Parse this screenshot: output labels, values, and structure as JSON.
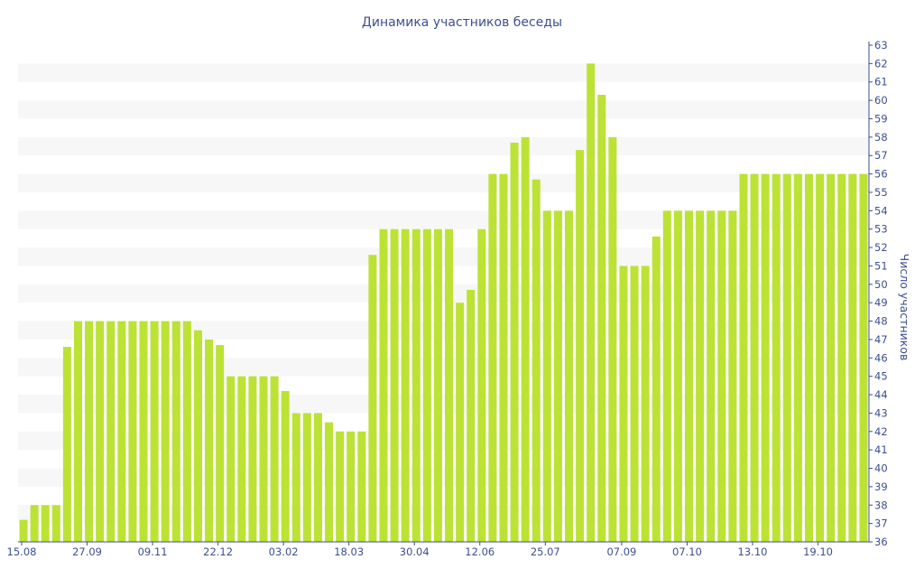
{
  "chart_data": {
    "type": "bar",
    "title": "Динамика участников беседы",
    "ylabel": "Число участников",
    "xlabel": "",
    "ylim": [
      36,
      63
    ],
    "y_axis_side": "right",
    "grid": "alternating horizontal bands",
    "bar_color": "#bce235",
    "band_color": "#f7f7f7",
    "text_color": "#3d4f8f",
    "x_tick_labels": [
      "15.08",
      "27.09",
      "09.11",
      "22.12",
      "03.02",
      "18.03",
      "30.04",
      "12.06",
      "25.07",
      "07.09",
      "07.10",
      "13.10",
      "19.10"
    ],
    "y_ticks": [
      36,
      37,
      38,
      39,
      40,
      41,
      42,
      43,
      44,
      45,
      46,
      47,
      48,
      49,
      50,
      51,
      52,
      53,
      54,
      55,
      56,
      57,
      58,
      59,
      60,
      61,
      62,
      63
    ],
    "values": [
      37.2,
      38,
      38,
      38,
      46.6,
      48,
      48,
      48,
      48,
      48,
      48,
      48,
      48,
      48,
      48,
      48,
      47.5,
      47,
      46.7,
      45,
      45,
      45,
      45,
      45,
      44.2,
      43,
      43,
      43,
      42.5,
      42,
      42,
      42,
      51.6,
      53,
      53,
      53,
      53,
      53,
      53,
      53,
      49,
      49.7,
      53,
      56,
      56,
      57.7,
      58,
      55.7,
      54,
      54,
      54,
      57.3,
      62,
      60.3,
      58,
      51,
      51,
      51,
      52.6,
      54,
      54,
      54,
      54,
      54,
      54,
      54,
      56,
      56,
      56,
      56,
      56,
      56,
      56,
      56,
      56,
      56,
      56,
      56
    ]
  }
}
